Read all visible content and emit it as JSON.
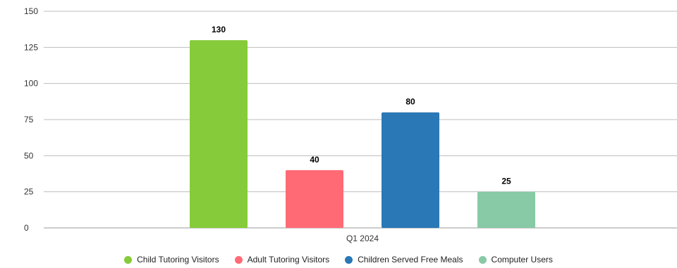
{
  "chart_data": {
    "type": "bar",
    "title": "",
    "xlabel": "",
    "ylabel": "",
    "categories": [
      "Q1 2024"
    ],
    "ylim": [
      0,
      150
    ],
    "yticks": [
      0,
      25,
      50,
      75,
      100,
      125,
      150
    ],
    "grid": true,
    "legend_position": "bottom",
    "series": [
      {
        "name": "Child Tutoring Visitors",
        "values": [
          130
        ],
        "color": "#86cb3a"
      },
      {
        "name": "Adult Tutoring Visitors",
        "values": [
          40
        ],
        "color": "#ff6a75"
      },
      {
        "name": "Children Served Free Meals",
        "values": [
          80
        ],
        "color": "#2a78b6"
      },
      {
        "name": "Computer Users",
        "values": [
          25
        ],
        "color": "#88c9a6"
      }
    ]
  }
}
